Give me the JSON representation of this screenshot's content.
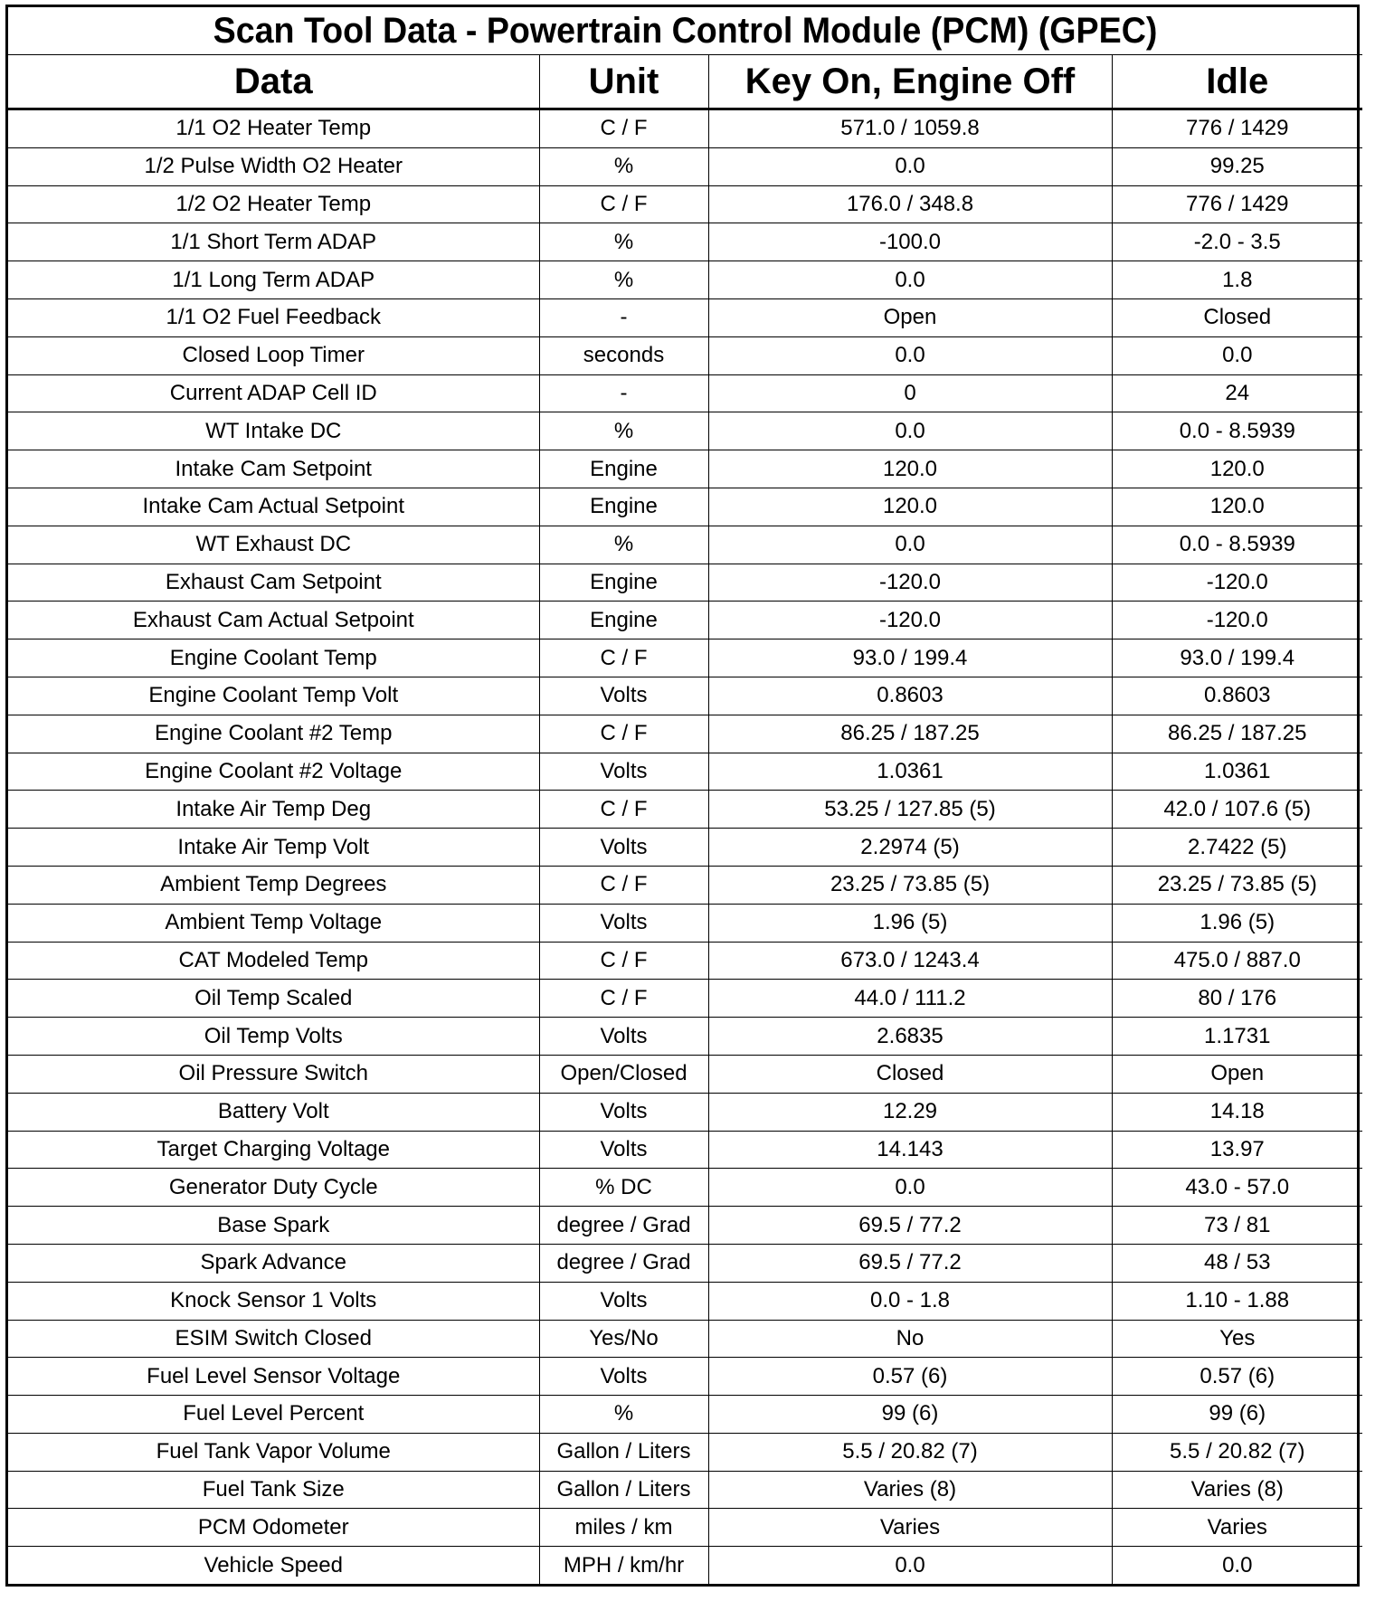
{
  "title": "Scan Tool Data - Powertrain Control Module (PCM) (GPEC)",
  "headers": [
    "Data",
    "Unit",
    "Key On, Engine Off",
    "Idle"
  ],
  "rows": [
    [
      "1/1 O2 Heater Temp",
      "C / F",
      "571.0 / 1059.8",
      "776 / 1429"
    ],
    [
      "1/2 Pulse Width O2 Heater",
      "%",
      "0.0",
      "99.25"
    ],
    [
      "1/2 O2 Heater Temp",
      "C / F",
      "176.0 / 348.8",
      "776 / 1429"
    ],
    [
      "1/1 Short Term ADAP",
      "%",
      "-100.0",
      "-2.0 - 3.5"
    ],
    [
      "1/1 Long Term ADAP",
      "%",
      "0.0",
      "1.8"
    ],
    [
      "1/1 O2 Fuel Feedback",
      "-",
      "Open",
      "Closed"
    ],
    [
      "Closed Loop Timer",
      "seconds",
      "0.0",
      "0.0"
    ],
    [
      "Current ADAP Cell ID",
      "-",
      "0",
      "24"
    ],
    [
      "WT Intake DC",
      "%",
      "0.0",
      "0.0 - 8.5939"
    ],
    [
      "Intake Cam Setpoint",
      "Engine",
      "120.0",
      "120.0"
    ],
    [
      "Intake Cam Actual Setpoint",
      "Engine",
      "120.0",
      "120.0"
    ],
    [
      "WT Exhaust DC",
      "%",
      "0.0",
      "0.0 - 8.5939"
    ],
    [
      "Exhaust Cam Setpoint",
      "Engine",
      "-120.0",
      "-120.0"
    ],
    [
      "Exhaust Cam Actual Setpoint",
      "Engine",
      "-120.0",
      "-120.0"
    ],
    [
      "Engine Coolant Temp",
      "C / F",
      "93.0 / 199.4",
      "93.0 / 199.4"
    ],
    [
      "Engine Coolant Temp Volt",
      "Volts",
      "0.8603",
      "0.8603"
    ],
    [
      "Engine Coolant #2 Temp",
      "C / F",
      "86.25 / 187.25",
      "86.25 / 187.25"
    ],
    [
      "Engine Coolant #2 Voltage",
      "Volts",
      "1.0361",
      "1.0361"
    ],
    [
      "Intake Air Temp Deg",
      "C / F",
      "53.25 / 127.85 (5)",
      "42.0 / 107.6 (5)"
    ],
    [
      "Intake Air Temp Volt",
      "Volts",
      "2.2974 (5)",
      "2.7422 (5)"
    ],
    [
      "Ambient Temp Degrees",
      "C / F",
      "23.25 / 73.85 (5)",
      "23.25 / 73.85 (5)"
    ],
    [
      "Ambient Temp Voltage",
      "Volts",
      "1.96 (5)",
      "1.96 (5)"
    ],
    [
      "CAT Modeled Temp",
      "C / F",
      "673.0 / 1243.4",
      "475.0 / 887.0"
    ],
    [
      "Oil Temp Scaled",
      "C / F",
      "44.0 / 111.2",
      "80 / 176"
    ],
    [
      "Oil Temp Volts",
      "Volts",
      "2.6835",
      "1.1731"
    ],
    [
      "Oil Pressure Switch",
      "Open/Closed",
      "Closed",
      "Open"
    ],
    [
      "Battery Volt",
      "Volts",
      "12.29",
      "14.18"
    ],
    [
      "Target Charging Voltage",
      "Volts",
      "14.143",
      "13.97"
    ],
    [
      "Generator Duty Cycle",
      "% DC",
      "0.0",
      "43.0 - 57.0"
    ],
    [
      "Base Spark",
      "degree / Grad",
      "69.5 / 77.2",
      "73 / 81"
    ],
    [
      "Spark Advance",
      "degree / Grad",
      "69.5 / 77.2",
      "48 / 53"
    ],
    [
      "Knock Sensor 1 Volts",
      "Volts",
      "0.0 - 1.8",
      "1.10 - 1.88"
    ],
    [
      "ESIM Switch Closed",
      "Yes/No",
      "No",
      "Yes"
    ],
    [
      "Fuel Level Sensor Voltage",
      "Volts",
      "0.57 (6)",
      "0.57 (6)"
    ],
    [
      "Fuel Level Percent",
      "%",
      "99 (6)",
      "99 (6)"
    ],
    [
      "Fuel Tank Vapor Volume",
      "Gallon / Liters",
      "5.5 / 20.82 (7)",
      "5.5 / 20.82 (7)"
    ],
    [
      "Fuel Tank Size",
      "Gallon / Liters",
      "Varies (8)",
      "Varies (8)"
    ],
    [
      "PCM Odometer",
      "miles / km",
      "Varies",
      "Varies"
    ],
    [
      "Vehicle Speed",
      "MPH / km/hr",
      "0.0",
      "0.0"
    ]
  ]
}
